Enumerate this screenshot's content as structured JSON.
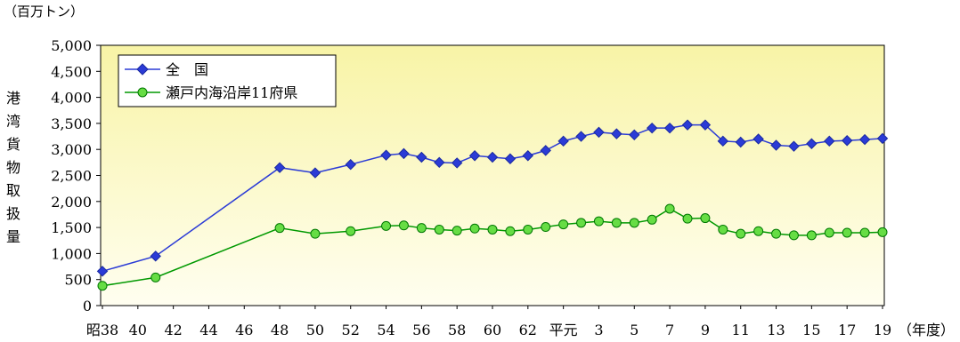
{
  "chart_data": {
    "type": "line",
    "unit_label": "（百万トン）",
    "ylabel": "港湾貨物取扱量",
    "xlabel": "（年度）",
    "ylim": [
      0,
      5000
    ],
    "y_ticks": [
      0,
      500,
      1000,
      1500,
      2000,
      2500,
      3000,
      3500,
      4000,
      4500,
      5000
    ],
    "y_tick_labels": [
      "0",
      "500",
      "1,000",
      "1,500",
      "2,000",
      "2,500",
      "3,000",
      "3,500",
      "4,000",
      "4,500",
      "5,000"
    ],
    "x": [
      "昭38",
      "41",
      "48",
      "50",
      "52",
      "54",
      "55",
      "56",
      "57",
      "58",
      "59",
      "60",
      "61",
      "62",
      "63",
      "平元",
      "2",
      "3",
      "4",
      "5",
      "6",
      "7",
      "8",
      "9",
      "10",
      "11",
      "12",
      "13",
      "14",
      "15",
      "16",
      "17",
      "18",
      "19"
    ],
    "x_tick_labels": [
      "昭38",
      "40",
      "42",
      "44",
      "46",
      "48",
      "50",
      "52",
      "54",
      "56",
      "58",
      "60",
      "62",
      "平元",
      "3",
      "5",
      "7",
      "9",
      "11",
      "13",
      "15",
      "17",
      "19"
    ],
    "series": [
      {
        "name": "全　国",
        "color": "#2b3bd6",
        "marker": "diamond",
        "values": [
          660,
          950,
          2650,
          2550,
          2710,
          2890,
          2920,
          2850,
          2750,
          2740,
          2880,
          2850,
          2820,
          2880,
          2980,
          3160,
          3250,
          3330,
          3300,
          3280,
          3410,
          3410,
          3470,
          3470,
          3160,
          3140,
          3200,
          3080,
          3060,
          3110,
          3160,
          3170,
          3190,
          3210
        ]
      },
      {
        "name": "瀬戸内海沿岸11府県",
        "color": "#009900",
        "marker": "circle",
        "values": [
          380,
          540,
          1490,
          1380,
          1430,
          1530,
          1540,
          1490,
          1460,
          1440,
          1480,
          1460,
          1430,
          1460,
          1510,
          1560,
          1590,
          1620,
          1590,
          1590,
          1650,
          1860,
          1670,
          1680,
          1460,
          1380,
          1430,
          1380,
          1350,
          1350,
          1400,
          1400,
          1400,
          1410
        ]
      }
    ],
    "legend_position": "top-left",
    "grid": false,
    "background": "#fffde8"
  }
}
